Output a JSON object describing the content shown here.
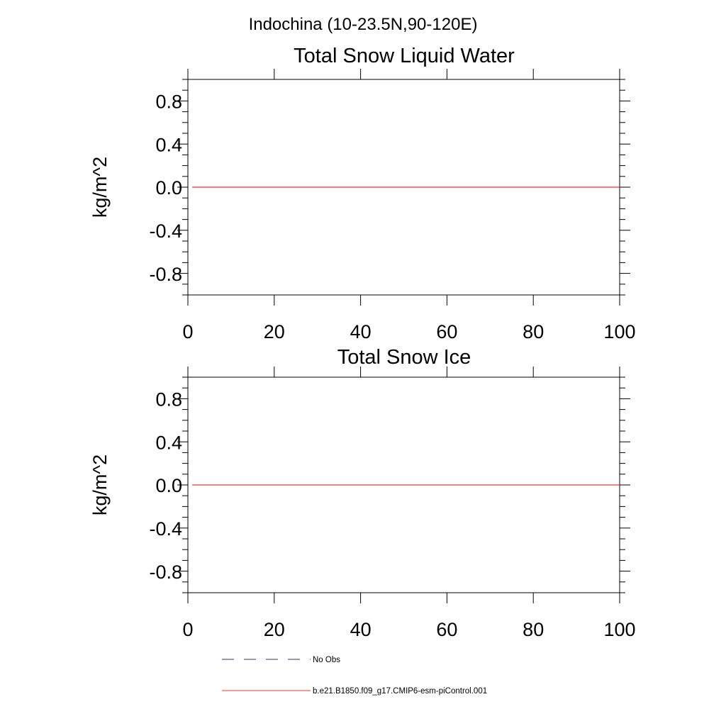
{
  "suptitle": "Indochina (10-23.5N,90-120E)",
  "colors": {
    "model_line": "#e8393a",
    "obs_line": "#303060",
    "axis": "#000000"
  },
  "legend": {
    "placement": "bottom-left",
    "entries": [
      {
        "label": "No Obs",
        "style": "dashed",
        "color": "#303060"
      },
      {
        "label": "b.e21.B1850.f09_g17.CMIP6-esm-piControl.001",
        "style": "solid",
        "color": "#e8393a"
      }
    ]
  },
  "chart_data": [
    {
      "type": "line",
      "title": "Total Snow Liquid Water",
      "xlabel": "",
      "ylabel": "kg/m^2",
      "xlim": [
        0,
        100
      ],
      "ylim": [
        -1,
        1
      ],
      "xticks": [
        "0",
        "20",
        "40",
        "60",
        "80",
        "100"
      ],
      "yticks": [
        "0.8",
        "0.4",
        "0.0",
        "-0.4",
        "-0.8"
      ],
      "grid": false,
      "series": [
        {
          "name": "b.e21.B1850.f09_g17.CMIP6-esm-piControl.001",
          "x": [
            1,
            100
          ],
          "values": [
            0.0,
            0.0
          ]
        }
      ]
    },
    {
      "type": "line",
      "title": "Total Snow Ice",
      "xlabel": "",
      "ylabel": "kg/m^2",
      "xlim": [
        0,
        100
      ],
      "ylim": [
        -1,
        1
      ],
      "xticks": [
        "0",
        "20",
        "40",
        "60",
        "80",
        "100"
      ],
      "yticks": [
        "0.8",
        "0.4",
        "0.0",
        "-0.4",
        "-0.8"
      ],
      "grid": false,
      "series": [
        {
          "name": "b.e21.B1850.f09_g17.CMIP6-esm-piControl.001",
          "x": [
            1,
            100
          ],
          "values": [
            0.0,
            0.0
          ]
        }
      ]
    }
  ]
}
